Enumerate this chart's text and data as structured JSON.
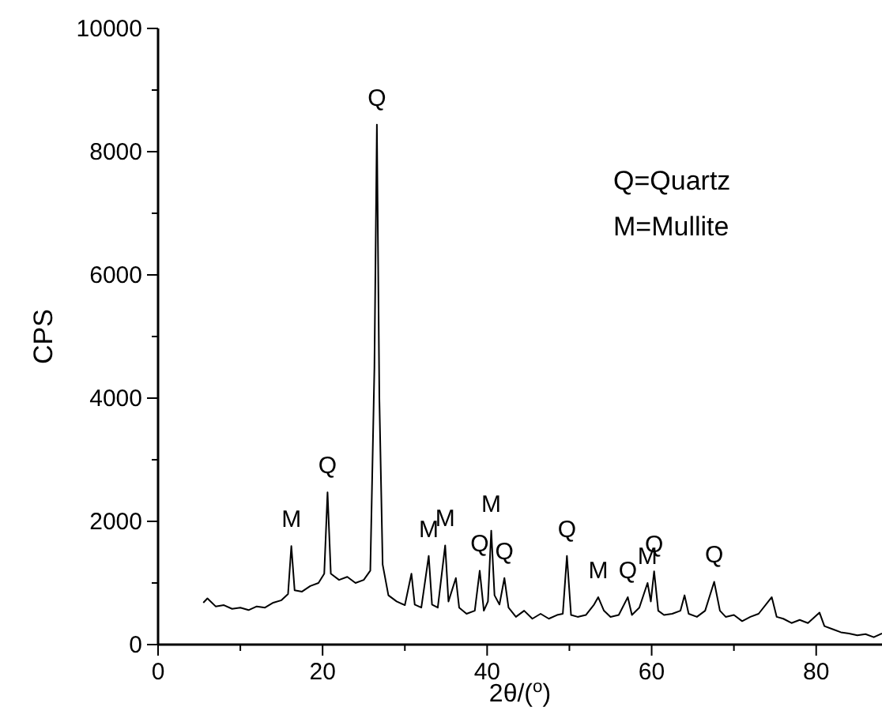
{
  "chart_data": {
    "type": "line",
    "xlabel": "2θ/($^{o}$)",
    "ylabel": "CPS",
    "xlim": [
      0,
      88
    ],
    "ylim": [
      0,
      10000
    ],
    "xticks": [
      0,
      {
        "value": 10,
        "label": null
      },
      20,
      {
        "value": 30,
        "label": null
      },
      40,
      {
        "value": 50,
        "label": null
      },
      60,
      {
        "value": 70,
        "label": null
      },
      80
    ],
    "yticks": [
      0,
      {
        "value": 1000,
        "label": null
      },
      2000,
      {
        "value": 3000,
        "label": null
      },
      4000,
      {
        "value": 5000,
        "label": null
      },
      6000,
      {
        "value": 7000,
        "label": null
      },
      8000,
      {
        "value": 9000,
        "label": null
      },
      10000
    ],
    "grid": false,
    "line_style": "solid",
    "series": [
      {
        "color": "#000000",
        "x": [
          5.5,
          6,
          7,
          8,
          9,
          10,
          11,
          12,
          13,
          14,
          15,
          15.8,
          16.2,
          16.6,
          17.5,
          18.5,
          19.5,
          20.2,
          20.6,
          21,
          22,
          23,
          24,
          25,
          25.8,
          26.3,
          26.6,
          26.9,
          27.3,
          28,
          29,
          30,
          30.8,
          31.2,
          32,
          32.9,
          33.3,
          34,
          34.9,
          35.3,
          36.2,
          36.6,
          37.5,
          38.5,
          39.1,
          39.6,
          40.1,
          40.5,
          40.9,
          41.5,
          42.1,
          42.6,
          43.5,
          44.5,
          45.5,
          46.5,
          47.5,
          48.5,
          49.2,
          49.7,
          50.2,
          51,
          52,
          53,
          53.5,
          54.2,
          55,
          56,
          57.1,
          57.6,
          58.5,
          59.5,
          59.9,
          60.3,
          60.8,
          61.5,
          62.5,
          63.5,
          64,
          64.5,
          65.5,
          66.5,
          67.6,
          68.3,
          69,
          70,
          71,
          72,
          73,
          74.6,
          75.2,
          76,
          77,
          78,
          79,
          80.4,
          81,
          82,
          83,
          84,
          85,
          86,
          87,
          88
        ],
        "values": [
          680,
          750,
          620,
          640,
          580,
          600,
          560,
          620,
          600,
          680,
          720,
          820,
          1600,
          880,
          860,
          950,
          1000,
          1150,
          2470,
          1150,
          1050,
          1100,
          1000,
          1050,
          1200,
          4500,
          8440,
          4000,
          1300,
          800,
          700,
          640,
          1150,
          650,
          600,
          1440,
          650,
          600,
          1610,
          700,
          1080,
          600,
          500,
          550,
          1200,
          550,
          700,
          1850,
          800,
          650,
          1080,
          600,
          450,
          550,
          420,
          500,
          420,
          480,
          500,
          1440,
          480,
          450,
          480,
          650,
          770,
          550,
          450,
          480,
          770,
          480,
          600,
          1000,
          700,
          1190,
          550,
          480,
          500,
          550,
          800,
          500,
          450,
          550,
          1020,
          550,
          450,
          480,
          380,
          450,
          500,
          770,
          450,
          420,
          350,
          400,
          350,
          520,
          300,
          250,
          200,
          180,
          150,
          170,
          120,
          180
        ]
      }
    ],
    "annotations": [
      "Q=Quartz",
      "M=Mullite",
      {
        "text": "M",
        "x": 16.2,
        "y": 1600
      },
      {
        "text": "Q",
        "x": 20.6,
        "y": 2470
      },
      {
        "text": "Q",
        "x": 26.6,
        "y": 8440
      },
      {
        "text": "M",
        "x": 32.9,
        "y": 1440
      },
      {
        "text": "M",
        "x": 34.9,
        "y": 1610
      },
      {
        "text": "Q",
        "x": 39.1,
        "y": 1200
      },
      {
        "text": "M",
        "x": 40.5,
        "y": 1850
      },
      {
        "text": "Q",
        "x": 42.1,
        "y": 1080
      },
      {
        "text": "Q",
        "x": 49.7,
        "y": 1440
      },
      {
        "text": "M",
        "x": 53.5,
        "y": 770
      },
      {
        "text": "Q",
        "x": 57.1,
        "y": 770
      },
      {
        "text": "M",
        "x": 59.5,
        "y": 1000
      },
      {
        "text": "Q",
        "x": 60.3,
        "y": 1190
      },
      {
        "text": "Q",
        "x": 67.6,
        "y": 1020
      }
    ]
  }
}
